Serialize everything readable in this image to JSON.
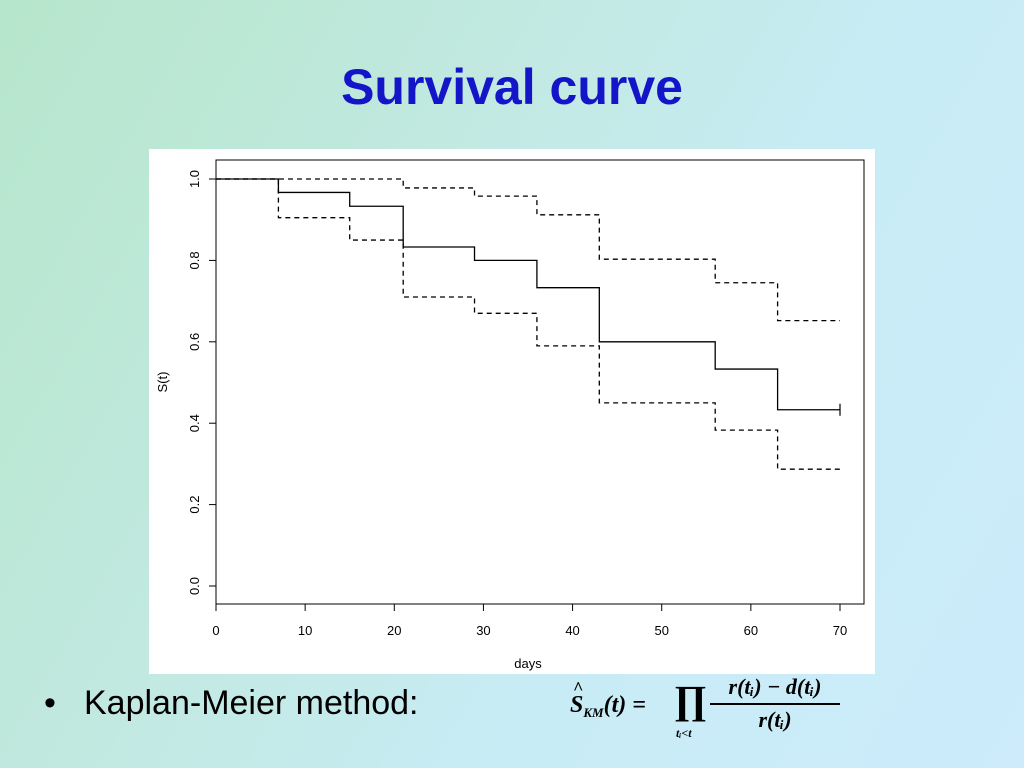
{
  "slide": {
    "title": "Survival curve",
    "bullet_marker": "•",
    "bullet_text": "Kaplan-Meier method:"
  },
  "formula": {
    "lhs_symbol": "S",
    "lhs_subscript": "KM",
    "lhs_arg": "(t) =",
    "product_symbol": "∏",
    "product_subscript": "tᵢ<t",
    "numerator": "r(tᵢ) − d(tᵢ)",
    "denominator": "r(tᵢ)"
  },
  "chart_data": {
    "type": "line",
    "xlabel": "days",
    "ylabel": "S(t)",
    "xlim": [
      0,
      70
    ],
    "ylim": [
      0,
      1
    ],
    "x_ticks": [
      "0",
      "10",
      "20",
      "30",
      "40",
      "50",
      "60",
      "70"
    ],
    "y_ticks": [
      "0.0",
      "0.2",
      "0.4",
      "0.6",
      "0.8",
      "1.0"
    ],
    "grid": false,
    "legend": "none",
    "line_color": "#000000",
    "series": [
      {
        "style": "solid",
        "x": [
          0,
          7,
          15,
          21,
          29,
          36,
          43,
          56,
          63,
          70
        ],
        "y": [
          1.0,
          0.967,
          0.933,
          0.833,
          0.8,
          0.733,
          0.6,
          0.533,
          0.433,
          0.433
        ]
      },
      {
        "style": "dashed",
        "x": [
          0,
          21,
          29,
          36,
          43,
          56,
          63,
          70
        ],
        "y": [
          1.0,
          0.978,
          0.958,
          0.912,
          0.803,
          0.745,
          0.652,
          0.652
        ]
      },
      {
        "style": "dashed",
        "x": [
          0,
          7,
          15,
          21,
          29,
          36,
          43,
          56,
          63,
          70
        ],
        "y": [
          1.0,
          0.905,
          0.85,
          0.71,
          0.67,
          0.59,
          0.45,
          0.383,
          0.287,
          0.287
        ]
      }
    ],
    "censored": [
      {
        "x": 70,
        "y": 0.433
      }
    ]
  }
}
